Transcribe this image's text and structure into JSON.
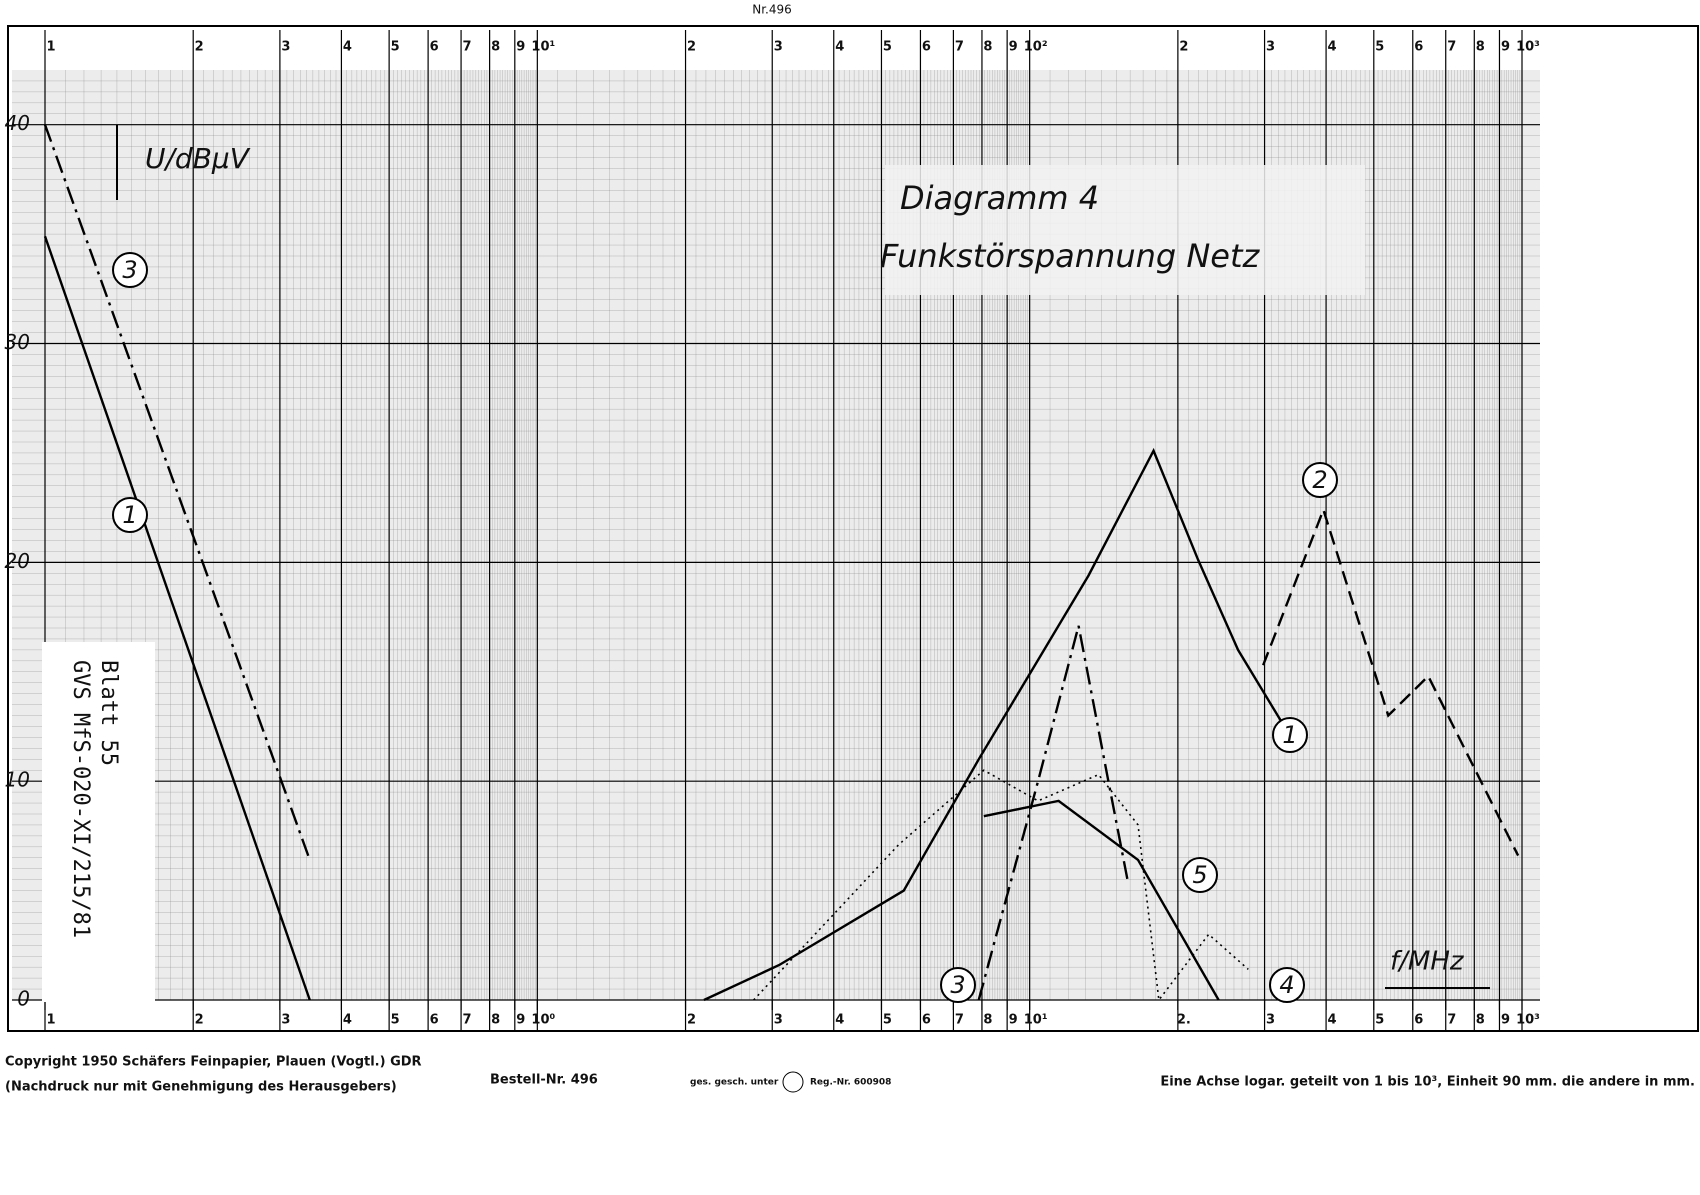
{
  "chart_data": {
    "type": "line",
    "header": "Nr.496",
    "title": "Diagramm 4",
    "subtitle": "Funkstörspannung Netz",
    "ylabel": "U/dBμV",
    "xlabel": "f/MHz",
    "stamp": [
      "GVS MfS-020-XI/215/81",
      "Blatt 55"
    ],
    "log_x": true,
    "grid": true,
    "xlim": [
      1,
      1000
    ],
    "ylim": [
      0,
      42.5
    ],
    "yticks": [
      0,
      10,
      20,
      30,
      40
    ],
    "xticks": [
      1,
      2,
      3,
      4,
      5,
      6,
      7,
      8,
      9,
      {
        "value": 10,
        "label": "10¹"
      },
      {
        "value": 20,
        "label": "2"
      },
      {
        "value": 30,
        "label": "3"
      },
      {
        "value": 40,
        "label": "4"
      },
      {
        "value": 50,
        "label": "5"
      },
      {
        "value": 60,
        "label": "6"
      },
      {
        "value": 70,
        "label": "7"
      },
      {
        "value": 80,
        "label": "8"
      },
      {
        "value": 90,
        "label": "9"
      },
      {
        "value": 100,
        "label": "10²"
      },
      {
        "value": 200,
        "label": "2"
      },
      {
        "value": 300,
        "label": "3"
      },
      {
        "value": 400,
        "label": "4"
      },
      {
        "value": 500,
        "label": "5"
      },
      {
        "value": 600,
        "label": "6"
      },
      {
        "value": 700,
        "label": "7"
      },
      {
        "value": 800,
        "label": "8"
      },
      {
        "value": 900,
        "label": "9"
      },
      {
        "value": 1000,
        "label": "10³"
      }
    ],
    "xticks_bottom": [
      1,
      2,
      3,
      4,
      5,
      6,
      7,
      8,
      9,
      {
        "value": 10,
        "label": "10⁰"
      },
      {
        "value": 20,
        "label": "2"
      },
      {
        "value": 30,
        "label": "3"
      },
      {
        "value": 40,
        "label": "4"
      },
      {
        "value": 50,
        "label": "5"
      },
      {
        "value": 60,
        "label": "6"
      },
      {
        "value": 70,
        "label": "7"
      },
      {
        "value": 80,
        "label": "8"
      },
      {
        "value": 90,
        "label": "9"
      },
      {
        "value": 100,
        "label": "10¹"
      },
      {
        "value": 200,
        "label": "2."
      },
      {
        "value": 300,
        "label": "3"
      },
      {
        "value": 400,
        "label": "4"
      },
      {
        "value": 500,
        "label": "5"
      },
      {
        "value": 600,
        "label": "6"
      },
      {
        "value": 700,
        "label": "7"
      },
      {
        "value": 800,
        "label": "8"
      },
      {
        "value": 900,
        "label": "9"
      },
      {
        "value": 1000,
        "label": "10³"
      }
    ],
    "series": [
      {
        "name": "1",
        "color": "#000000",
        "dash": "solid",
        "x": [
          1,
          3.45,
          null,
          21.8,
          31,
          55.5,
          78.8,
          131.7,
          178.5,
          220,
          265,
          327
        ],
        "values": [
          34.9,
          0,
          null,
          0,
          1.6,
          5.0,
          11,
          19.4,
          25.1,
          20.1,
          16,
          12.6
        ]
      },
      {
        "name": "2",
        "color": "#000000",
        "dash": "dashed",
        "x": [
          298,
          395,
          535,
          645,
          982
        ],
        "values": [
          15.3,
          22.4,
          13,
          14.8,
          6.6
        ]
      },
      {
        "name": "3",
        "color": "#000000",
        "dash": "dashdot",
        "x": [
          1,
          3.45,
          null,
          78.8,
          104,
          125.7,
          144.5,
          158
        ],
        "values": [
          40,
          6.4,
          null,
          0,
          10,
          17.1,
          10,
          5.5
        ]
      },
      {
        "name": "4",
        "color": "#000000",
        "dash": "dotted",
        "x": [
          27.5,
          54.2,
          80.7,
          104,
          138,
          166,
          183,
          231,
          278
        ],
        "values": [
          0,
          7.1,
          10.5,
          9.1,
          10.3,
          8,
          0,
          3,
          1.4
        ]
      },
      {
        "name": "5",
        "color": "#000000",
        "dash": "solid",
        "x": [
          80.7,
          114.5,
          166,
          242
        ],
        "values": [
          8.4,
          9.1,
          6.4,
          0
        ]
      }
    ],
    "footer": {
      "copyright": "Copyright 1950 Schäfers Feinpapier, Plauen (Vogtl.) GDR",
      "reprint": "(Nachdruck nur mit Genehmigung des Herausgebers)",
      "order": "Bestell-Nr. 496",
      "protected": "ges. gesch. unter",
      "reg": "Reg.-Nr. 600908",
      "note": "Eine Achse logar. geteilt von 1 bis 10³, Einheit 90 mm. die andere in mm."
    }
  }
}
